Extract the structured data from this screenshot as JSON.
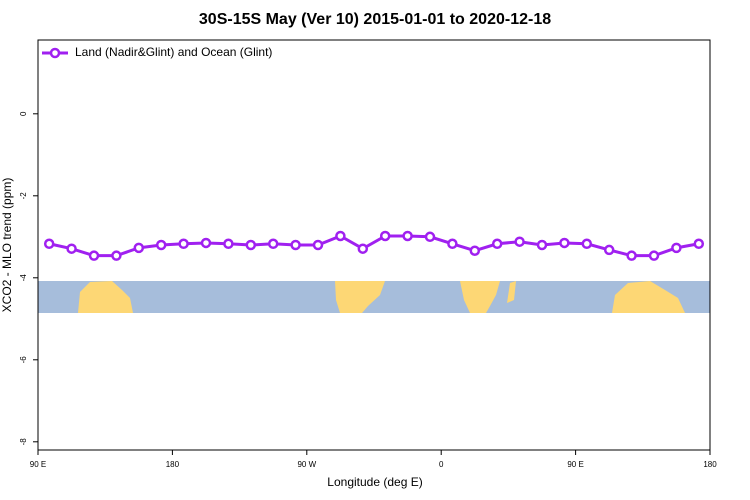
{
  "chart_data": {
    "type": "line",
    "title": "30S-15S May (Ver 10)   2015-01-01 to 2020-12-18",
    "xlabel": "Longitude (deg E)",
    "ylabel": "XCO2 - MLO trend (ppm)",
    "legend": "top-left",
    "x": [
      97.5,
      112.5,
      127.5,
      142.5,
      157.5,
      172.5,
      187.5,
      202.5,
      217.5,
      232.5,
      247.5,
      262.5,
      277.5,
      292.5,
      307.5,
      322.5,
      337.5,
      352.5,
      367.5,
      382.5,
      397.5,
      412.5,
      427.5,
      442.5,
      457.5,
      472.5,
      487.5,
      502.5,
      517.5,
      532.5
    ],
    "series": [
      {
        "name": "Land (Nadir&Glint) and Ocean (Glint)",
        "color": "#a020f0",
        "values": [
          -3.17,
          -3.29,
          -3.46,
          -3.46,
          -3.27,
          -3.2,
          -3.17,
          -3.15,
          -3.17,
          -3.2,
          -3.17,
          -3.2,
          -3.2,
          -2.98,
          -3.29,
          -2.98,
          -2.98,
          -3.0,
          -3.17,
          -3.34,
          -3.17,
          -3.12,
          -3.2,
          -3.15,
          -3.17,
          -3.32,
          -3.46,
          -3.46,
          -3.27,
          -3.17
        ]
      }
    ],
    "xlim": [
      90,
      540
    ],
    "xticks": [
      {
        "value": 90,
        "label": "90 E"
      },
      {
        "value": 180,
        "label": "180"
      },
      {
        "value": 270,
        "label": "90 W"
      },
      {
        "value": 360,
        "label": "0"
      },
      {
        "value": 450,
        "label": "90 E"
      },
      {
        "value": 540,
        "label": "180"
      }
    ],
    "ylim": [
      -8.2,
      1.8
    ],
    "yticks": [
      0,
      -2,
      -4,
      -6,
      -8
    ]
  }
}
